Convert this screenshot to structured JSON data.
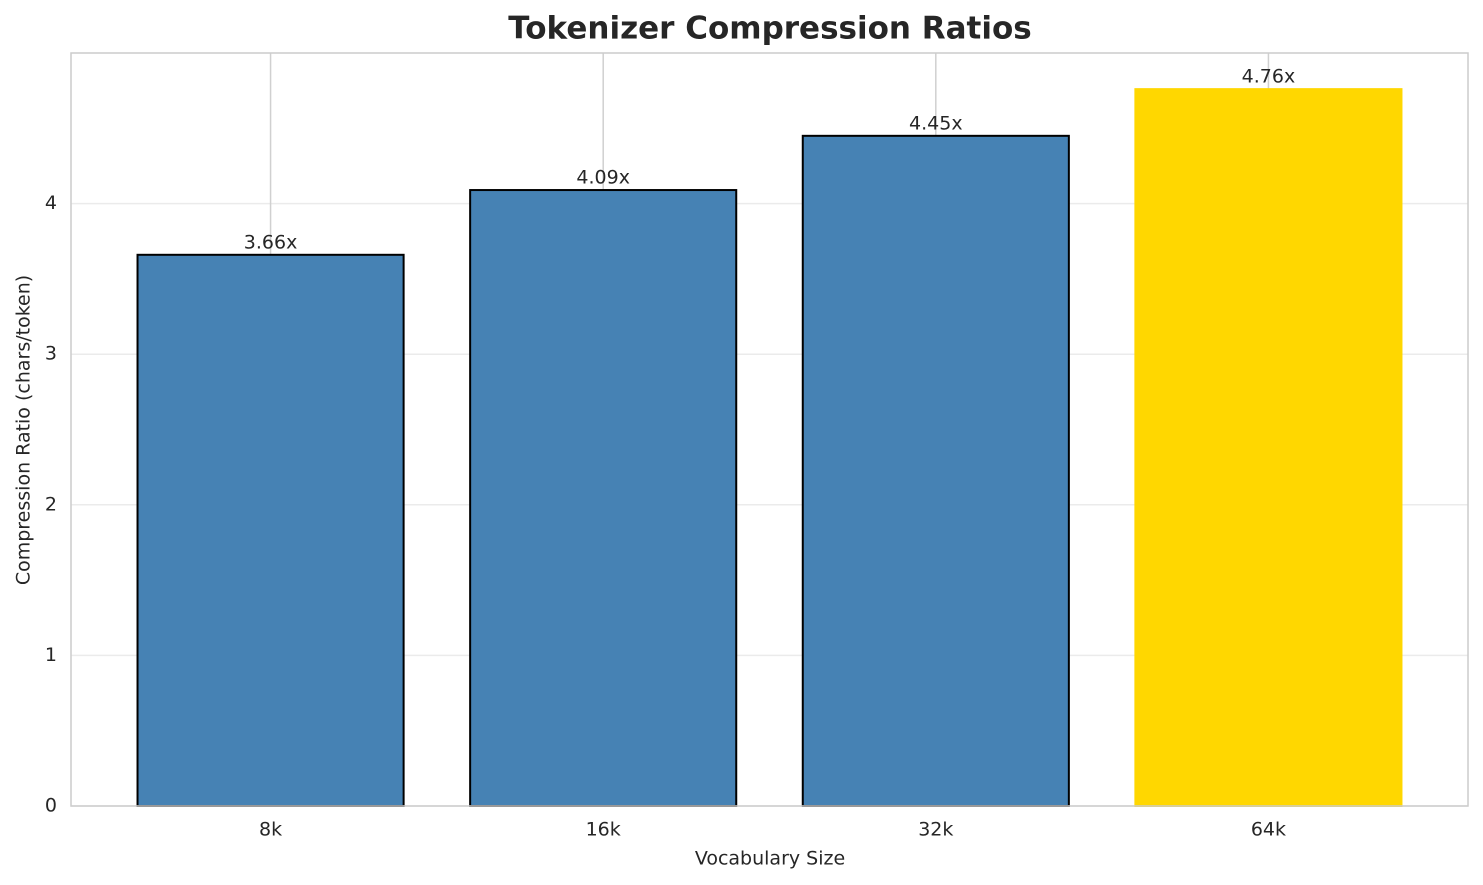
{
  "chart_data": {
    "type": "bar",
    "title": "Tokenizer Compression Ratios",
    "x_label": "Vocabulary Size",
    "y_label": "Compression Ratio (chars/token)",
    "categories": [
      "8k",
      "16k",
      "32k",
      "64k"
    ],
    "values": [
      3.66,
      4.09,
      4.45,
      4.76
    ],
    "value_labels": [
      "3.66x",
      "4.09x",
      "4.45x",
      "4.76x"
    ],
    "colors": [
      "#4682b4",
      "#4682b4",
      "#4682b4",
      "#ffd700"
    ],
    "edgecolors": [
      "#000000",
      "#000000",
      "#000000",
      "#ffd700"
    ],
    "ylim": [
      0,
      5.0
    ],
    "yticks": [
      0,
      1,
      2,
      3,
      4
    ],
    "grid": true
  }
}
